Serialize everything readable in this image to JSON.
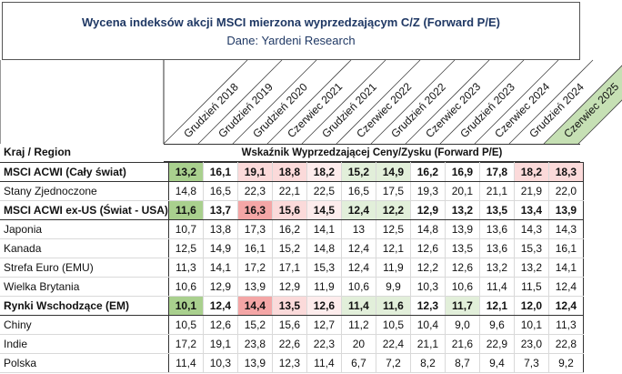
{
  "title": "Wycena indeksów akcji MSCI mierzona wyprzedzającym C/Z (Forward P/E)",
  "subtitle": "Dane: Yardeni Research",
  "region_header": "Kraj / Region",
  "metric_label": "Wskaźnik Wyprzedzającej Ceny/Zysku (Forward P/E)",
  "columns": [
    "Grudzień 2018",
    "Grudzień 2019",
    "Grudzień 2020",
    "Czerwiec 2021",
    "Grudzień 2021",
    "Czerwiec 2022",
    "Grudzień 2022",
    "Czerwiec 2023",
    "Grudzień 2023",
    "Czerwiec 2024",
    "Grudzień 2024",
    "Czerwiec 2025"
  ],
  "highlight_column_color": "#c6e0b4",
  "rows": [
    {
      "name": "MSCI ACWI (Cały świat)",
      "bold": true,
      "values": [
        "13,2",
        "16,1",
        "19,1",
        "18,8",
        "18,2",
        "15,2",
        "14,9",
        "16,2",
        "16,9",
        "17,8",
        "18,2",
        "18,3"
      ],
      "shade": [
        "green",
        "",
        "pink",
        "pink",
        "lpink",
        "lgreen",
        "lgreen",
        "",
        "",
        "",
        "pink",
        "pink"
      ]
    },
    {
      "name": "Stany Zjednoczone",
      "bold": false,
      "values": [
        "14,8",
        "16,5",
        "22,3",
        "22,1",
        "22,5",
        "16,5",
        "17,5",
        "19,3",
        "20,1",
        "21,1",
        "21,9",
        "22,0"
      ],
      "shade": []
    },
    {
      "name": "MSCI ACWI ex-US (Świat - USA)",
      "bold": true,
      "values": [
        "11,6",
        "13,7",
        "16,3",
        "15,6",
        "14,5",
        "12,4",
        "12,2",
        "12,9",
        "13,2",
        "13,5",
        "13,4",
        "13,9"
      ],
      "shade": [
        "green",
        "",
        "red",
        "pink",
        "lpink",
        "lgreen",
        "lgreen",
        "",
        "",
        "",
        "",
        ""
      ]
    },
    {
      "name": "Japonia",
      "bold": false,
      "values": [
        "10,7",
        "13,8",
        "17,3",
        "16,2",
        "14,1",
        "13",
        "12,5",
        "14,8",
        "13,9",
        "13,6",
        "14,3",
        "14,3"
      ],
      "shade": []
    },
    {
      "name": "Kanada",
      "bold": false,
      "values": [
        "12,5",
        "14,9",
        "16,1",
        "15,2",
        "14,8",
        "12,4",
        "12,1",
        "12,6",
        "13,5",
        "13,6",
        "15,3",
        "16,1"
      ],
      "shade": []
    },
    {
      "name": "Strefa Euro (EMU)",
      "bold": false,
      "values": [
        "11,3",
        "14,1",
        "17,2",
        "17,1",
        "15,3",
        "12,4",
        "11,9",
        "12,2",
        "12,6",
        "13,2",
        "13,2",
        "14,1"
      ],
      "shade": []
    },
    {
      "name": "Wielka Brytania",
      "bold": false,
      "values": [
        "10,6",
        "12,9",
        "13,9",
        "12,9",
        "11,9",
        "10,6",
        "9,9",
        "10,3",
        "10,6",
        "11,4",
        "11,5",
        "12,4"
      ],
      "shade": []
    },
    {
      "name": "Rynki Wschodzące (EM)",
      "bold": true,
      "values": [
        "10,1",
        "12,4",
        "14,4",
        "13,5",
        "12,6",
        "11,4",
        "11,6",
        "12,3",
        "11,7",
        "12,1",
        "12,0",
        "12,4"
      ],
      "shade": [
        "green",
        "",
        "red",
        "pink",
        "lpink",
        "lgreen",
        "lgreen",
        "",
        "lgreen",
        "",
        "",
        ""
      ]
    },
    {
      "name": "Chiny",
      "bold": false,
      "values": [
        "10,5",
        "12,6",
        "15,2",
        "15,6",
        "12,7",
        "11,2",
        "10,5",
        "10,4",
        "9,0",
        "9,6",
        "10,1",
        "11,3"
      ],
      "shade": []
    },
    {
      "name": "Indie",
      "bold": false,
      "values": [
        "17,2",
        "19,1",
        "23,8",
        "22,6",
        "22,3",
        "20",
        "22,4",
        "21,1",
        "21,6",
        "22,9",
        "23,0",
        "22,8"
      ],
      "shade": []
    },
    {
      "name": "Polska",
      "bold": false,
      "values": [
        "11,4",
        "10,3",
        "13,9",
        "12,3",
        "11,4",
        "6,7",
        "7,2",
        "8,2",
        "8,7",
        "9,4",
        "7,3",
        "9,2"
      ],
      "shade": []
    }
  ]
}
